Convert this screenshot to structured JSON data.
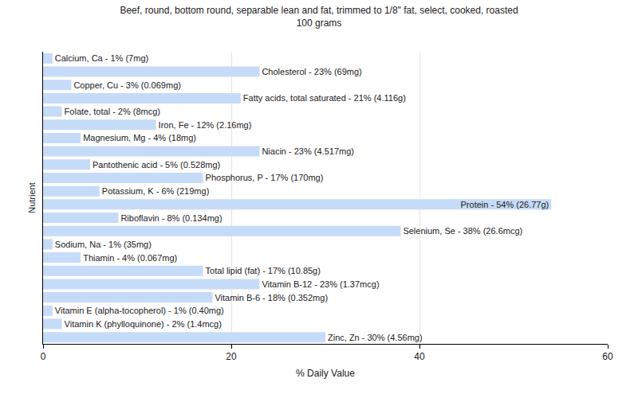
{
  "chart_data": {
    "type": "bar",
    "orientation": "horizontal",
    "title": "Beef, round, bottom round, separable lean and fat, trimmed to 1/8\" fat, select, cooked, roasted\n100 grams",
    "x_label": "% Daily Value",
    "y_label": "Nutrient",
    "categories": [
      "Calcium, Ca - 1% (7mg)",
      "Cholesterol - 23% (69mg)",
      "Copper, Cu - 3% (0.069mg)",
      "Fatty acids, total saturated - 21% (4.116g)",
      "Folate, total - 2% (8mcg)",
      "Iron, Fe - 12% (2.16mg)",
      "Magnesium, Mg - 4% (18mg)",
      "Niacin - 23% (4.517mg)",
      "Pantothenic acid - 5% (0.528mg)",
      "Phosphorus, P - 17% (170mg)",
      "Potassium, K - 6% (219mg)",
      "Protein - 54% (26.77g)",
      "Riboflavin - 8% (0.134mg)",
      "Selenium, Se - 38% (26.6mcg)",
      "Sodium, Na - 1% (35mg)",
      "Thiamin - 4% (0.067mg)",
      "Total lipid (fat) - 17% (10.85g)",
      "Vitamin B-12 - 23% (1.37mcg)",
      "Vitamin B-6 - 18% (0.352mg)",
      "Vitamin E (alpha-tocopherol) - 1% (0.40mg)",
      "Vitamin K (phylloquinone) - 2% (1.4mcg)",
      "Zinc, Zn - 30% (4.56mg)"
    ],
    "values": [
      1,
      23,
      3,
      21,
      2,
      12,
      4,
      23,
      5,
      17,
      6,
      54,
      8,
      38,
      1,
      4,
      17,
      23,
      18,
      1,
      2,
      30
    ],
    "color": "#c6dbf7",
    "xlim": [
      0,
      60
    ],
    "xticks": [
      0,
      20,
      40,
      60
    ],
    "grid": true,
    "tick_labels": "x"
  }
}
